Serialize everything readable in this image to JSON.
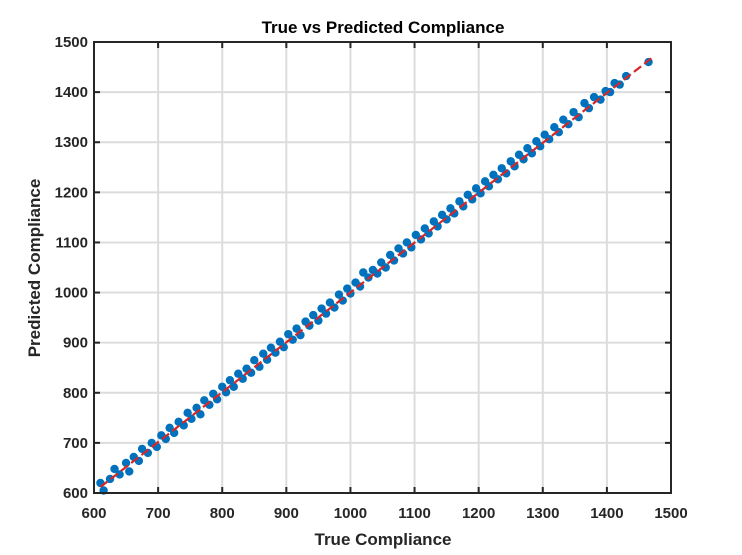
{
  "chart_data": {
    "type": "scatter",
    "title": "True vs Predicted Compliance",
    "xlabel": "True Compliance",
    "ylabel": "Predicted Compliance",
    "xlim": [
      600,
      1500
    ],
    "ylim": [
      600,
      1500
    ],
    "x_ticks": [
      "600",
      "700",
      "800",
      "900",
      "1000",
      "1100",
      "1200",
      "1300",
      "1400",
      "1500"
    ],
    "y_ticks": [
      "600",
      "700",
      "800",
      "900",
      "1000",
      "1100",
      "1200",
      "1300",
      "1400",
      "1500"
    ],
    "grid": true,
    "legend": "none",
    "series": [
      {
        "marker_color": "#0072bd",
        "points": [
          [
            610,
            620
          ],
          [
            615,
            605
          ],
          [
            625,
            628
          ],
          [
            632,
            648
          ],
          [
            640,
            637
          ],
          [
            650,
            660
          ],
          [
            655,
            643
          ],
          [
            662,
            672
          ],
          [
            670,
            664
          ],
          [
            675,
            688
          ],
          [
            684,
            680
          ],
          [
            690,
            700
          ],
          [
            698,
            692
          ],
          [
            705,
            715
          ],
          [
            712,
            708
          ],
          [
            718,
            730
          ],
          [
            725,
            720
          ],
          [
            732,
            742
          ],
          [
            740,
            735
          ],
          [
            746,
            760
          ],
          [
            752,
            748
          ],
          [
            760,
            770
          ],
          [
            766,
            757
          ],
          [
            772,
            785
          ],
          [
            780,
            776
          ],
          [
            786,
            798
          ],
          [
            792,
            787
          ],
          [
            800,
            812
          ],
          [
            806,
            801
          ],
          [
            812,
            825
          ],
          [
            818,
            812
          ],
          [
            825,
            838
          ],
          [
            832,
            828
          ],
          [
            838,
            848
          ],
          [
            845,
            840
          ],
          [
            850,
            865
          ],
          [
            858,
            852
          ],
          [
            864,
            878
          ],
          [
            870,
            866
          ],
          [
            876,
            890
          ],
          [
            883,
            880
          ],
          [
            890,
            902
          ],
          [
            896,
            891
          ],
          [
            903,
            917
          ],
          [
            910,
            906
          ],
          [
            916,
            928
          ],
          [
            922,
            915
          ],
          [
            930,
            942
          ],
          [
            936,
            934
          ],
          [
            942,
            955
          ],
          [
            950,
            944
          ],
          [
            955,
            968
          ],
          [
            962,
            958
          ],
          [
            968,
            980
          ],
          [
            975,
            970
          ],
          [
            982,
            996
          ],
          [
            988,
            984
          ],
          [
            995,
            1008
          ],
          [
            1000,
            998
          ],
          [
            1008,
            1020
          ],
          [
            1015,
            1012
          ],
          [
            1020,
            1040
          ],
          [
            1028,
            1030
          ],
          [
            1035,
            1045
          ],
          [
            1042,
            1038
          ],
          [
            1048,
            1060
          ],
          [
            1055,
            1050
          ],
          [
            1062,
            1075
          ],
          [
            1068,
            1064
          ],
          [
            1075,
            1088
          ],
          [
            1082,
            1078
          ],
          [
            1088,
            1100
          ],
          [
            1095,
            1090
          ],
          [
            1102,
            1115
          ],
          [
            1110,
            1106
          ],
          [
            1116,
            1128
          ],
          [
            1122,
            1118
          ],
          [
            1130,
            1142
          ],
          [
            1136,
            1132
          ],
          [
            1143,
            1155
          ],
          [
            1150,
            1146
          ],
          [
            1156,
            1168
          ],
          [
            1162,
            1158
          ],
          [
            1170,
            1182
          ],
          [
            1176,
            1172
          ],
          [
            1183,
            1195
          ],
          [
            1190,
            1186
          ],
          [
            1196,
            1208
          ],
          [
            1203,
            1198
          ],
          [
            1210,
            1222
          ],
          [
            1216,
            1212
          ],
          [
            1223,
            1235
          ],
          [
            1230,
            1226
          ],
          [
            1236,
            1248
          ],
          [
            1243,
            1238
          ],
          [
            1250,
            1262
          ],
          [
            1256,
            1252
          ],
          [
            1263,
            1275
          ],
          [
            1270,
            1266
          ],
          [
            1276,
            1288
          ],
          [
            1283,
            1278
          ],
          [
            1290,
            1302
          ],
          [
            1296,
            1292
          ],
          [
            1303,
            1315
          ],
          [
            1310,
            1306
          ],
          [
            1318,
            1330
          ],
          [
            1325,
            1320
          ],
          [
            1332,
            1345
          ],
          [
            1340,
            1336
          ],
          [
            1348,
            1360
          ],
          [
            1356,
            1350
          ],
          [
            1365,
            1378
          ],
          [
            1372,
            1368
          ],
          [
            1380,
            1390
          ],
          [
            1390,
            1385
          ],
          [
            1398,
            1402
          ],
          [
            1405,
            1400
          ],
          [
            1412,
            1418
          ],
          [
            1420,
            1415
          ],
          [
            1430,
            1432
          ],
          [
            1465,
            1460
          ]
        ]
      }
    ],
    "fit_line": {
      "color": "#d62728",
      "style": "dashed-ends",
      "from": [
        610,
        612
      ],
      "to": [
        1470,
        1468
      ]
    }
  }
}
